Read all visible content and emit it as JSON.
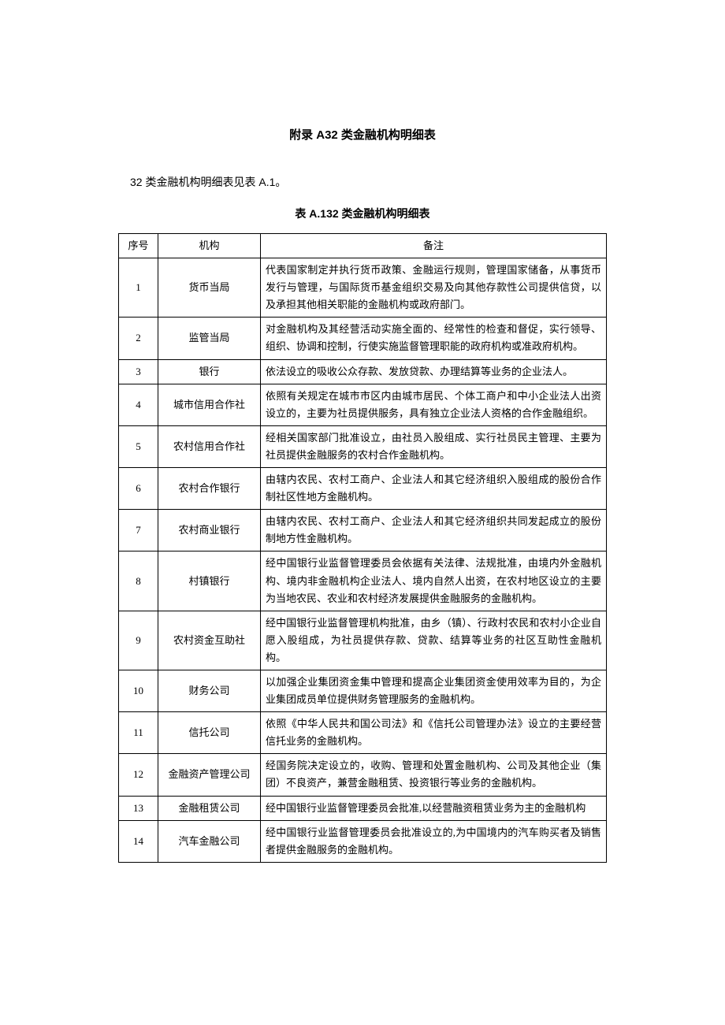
{
  "title": "附录 A32 类金融机构明细表",
  "intro": "32 类金融机构明细表见表 A.1。",
  "tableTitle": "表 A.132 类金融机构明细表",
  "headers": {
    "seq": "序号",
    "org": "机构",
    "note": "备注"
  },
  "rows": [
    {
      "seq": "1",
      "org": "货币当局",
      "note": "代表国家制定并执行货币政策、金融运行规则，管理国家储备，从事货币发行与管理，与国际货币基金组织交易及向其他存款性公司提供信贷，以及承担其他相关职能的金融机构或政府部门。"
    },
    {
      "seq": "2",
      "org": "监管当局",
      "note": "对金融机构及其经营活动实施全面的、经常性的检查和督促，实行领导、组织、协调和控制，行使实施监督管理职能的政府机构或准政府机构。"
    },
    {
      "seq": "3",
      "org": "银行",
      "note": "依法设立的吸收公众存款、发放贷款、办理结算等业务的企业法人。"
    },
    {
      "seq": "4",
      "org": "城市信用合作社",
      "note": "依照有关规定在城市市区内由城市居民、个体工商户和中小企业法人出资设立的，主要为社员提供服务，具有独立企业法人资格的合作金融组织。"
    },
    {
      "seq": "5",
      "org": "农村信用合作社",
      "note": "经相关国家部门批准设立，由社员入股组成、实行社员民主管理、主要为社员提供金融服务的农村合作金融机构。"
    },
    {
      "seq": "6",
      "org": "农村合作银行",
      "note": "由辖内农民、农村工商户、企业法人和其它经济组织入股组成的股份合作制社区性地方金融机构。"
    },
    {
      "seq": "7",
      "org": "农村商业银行",
      "note": "由辖内农民、农村工商户、企业法人和其它经济组织共同发起成立的股份制地方性金融机构。"
    },
    {
      "seq": "8",
      "org": "村镇银行",
      "note": "经中国银行业监督管理委员会依据有关法律、法规批准，由境内外金融机构、境内非金融机构企业法人、境内自然人出资，在农村地区设立的主要为当地农民、农业和农村经济发展提供金融服务的金融机构。"
    },
    {
      "seq": "9",
      "org": "农村资金互助社",
      "note": "经中国银行业监督管理机构批准，由乡（镇）、行政村农民和农村小企业自愿入股组成，为社员提供存款、贷款、结算等业务的社区互助性金融机构。"
    },
    {
      "seq": "10",
      "org": "财务公司",
      "note": "以加强企业集团资金集中管理和提高企业集团资金使用效率为目的，为企业集团成员单位提供财务管理服务的金融机构。"
    },
    {
      "seq": "11",
      "org": "信托公司",
      "note": "依照《中华人民共和国公司法》和《信托公司管理办法》设立的主要经营信托业务的金融机构。"
    },
    {
      "seq": "12",
      "org": "金融资产管理公司",
      "note": "经国务院决定设立的，收购、管理和处置金融机构、公司及其他企业（集团）不良资产，兼营金融租赁、投资银行等业务的金融机构。"
    },
    {
      "seq": "13",
      "org": "金融租赁公司",
      "note": "经中国银行业监督管理委员会批准,以经营融资租赁业务为主的金融机构"
    },
    {
      "seq": "14",
      "org": "汽车金融公司",
      "note": "经中国银行业监督管理委员会批准设立的,为中国境内的汽车购买者及销售者提供金融服务的金融机构。"
    }
  ]
}
